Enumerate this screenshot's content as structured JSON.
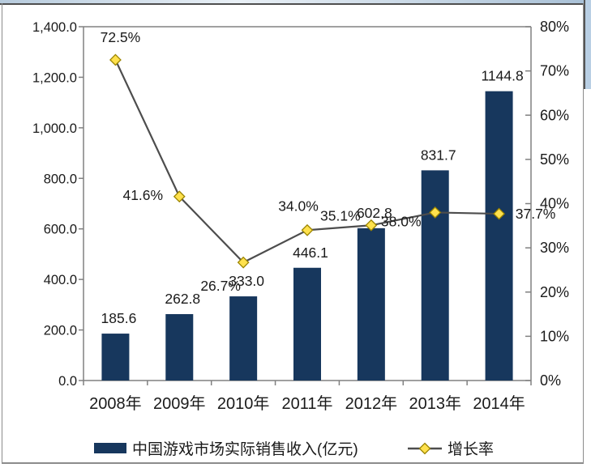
{
  "frame": {
    "top_strip_color": "#c3d5e6",
    "side_strip_color": "#b9cfe4",
    "border_color": "#8c8c8c"
  },
  "chart_data": {
    "type": "combo",
    "categories": [
      "2008年",
      "2009年",
      "2010年",
      "2011年",
      "2012年",
      "2013年",
      "2014年"
    ],
    "series": [
      {
        "name": "中国游戏市场实际销售收入(亿元)",
        "type": "bar",
        "axis": "left",
        "values": [
          185.6,
          262.8,
          333.0,
          446.1,
          602.8,
          831.7,
          1144.8
        ],
        "data_labels": [
          "185.6",
          "262.8",
          "333.0",
          "446.1",
          "602.8",
          "831.7",
          "1144.8"
        ],
        "color": "#17375D"
      },
      {
        "name": "增长率",
        "type": "line",
        "axis": "right",
        "values": [
          72.5,
          41.6,
          26.7,
          34.0,
          35.1,
          38.0,
          37.7
        ],
        "data_labels": [
          "72.5%",
          "41.6%",
          "26.7%",
          "34.0%",
          "35.1%",
          "38.0%",
          "37.7%"
        ],
        "line_color": "#4d4d4d",
        "marker": {
          "shape": "diamond",
          "fill": "#ffe14d",
          "stroke": "#9b8400"
        }
      }
    ],
    "left_axis": {
      "min": 0,
      "max": 1400,
      "step": 200,
      "tick_labels_top_to_bottom": [
        "1,400.0",
        "1,200.0",
        "1,000.0",
        "800.0",
        "600.0",
        "400.0",
        "200.0",
        "0.0"
      ]
    },
    "right_axis": {
      "min": 0,
      "max": 80,
      "step": 10,
      "tick_labels_top_to_bottom": [
        "80%",
        "70%",
        "60%",
        "50%",
        "40%",
        "30%",
        "20%",
        "10%",
        "0%"
      ]
    },
    "legend_position": "bottom",
    "grid": false,
    "axis_color": "#808080",
    "text_color": "#1a1a1a"
  }
}
